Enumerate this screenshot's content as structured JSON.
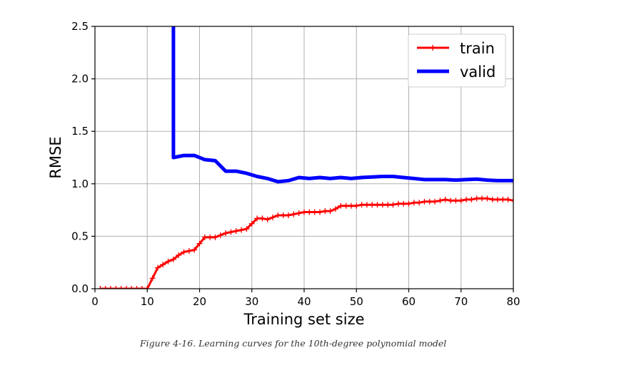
{
  "caption": "Figure 4-16. Learning curves for the 10th-degree polynomial model",
  "colors": {
    "train": "#ff0000",
    "valid": "#0000ff",
    "grid": "#b0b0b0"
  },
  "chart_data": {
    "type": "line",
    "xlabel": "Training set size",
    "ylabel": "RMSE",
    "xlim": [
      0,
      80
    ],
    "ylim": [
      0,
      2.5
    ],
    "xticks": [
      0,
      10,
      20,
      30,
      40,
      50,
      60,
      70,
      80
    ],
    "yticks": [
      0.0,
      0.5,
      1.0,
      1.5,
      2.0,
      2.5
    ],
    "xtick_labels": [
      "0",
      "10",
      "20",
      "30",
      "40",
      "50",
      "60",
      "70",
      "80"
    ],
    "ytick_labels": [
      "0.0",
      "0.5",
      "1.0",
      "1.5",
      "2.0",
      "2.5"
    ],
    "grid": true,
    "legend": "top-right",
    "series": [
      {
        "name": "train",
        "color": "#ff0000",
        "marker": "plus",
        "x": [
          1,
          2,
          3,
          4,
          5,
          6,
          7,
          8,
          9,
          10,
          11,
          12,
          13,
          14,
          15,
          16,
          17,
          18,
          19,
          20,
          21,
          22,
          23,
          24,
          25,
          26,
          27,
          28,
          29,
          30,
          31,
          32,
          33,
          34,
          35,
          36,
          37,
          38,
          39,
          40,
          41,
          42,
          43,
          44,
          45,
          46,
          47,
          48,
          49,
          50,
          51,
          52,
          53,
          54,
          55,
          56,
          57,
          58,
          59,
          60,
          61,
          62,
          63,
          64,
          65,
          66,
          67,
          68,
          69,
          70,
          71,
          72,
          73,
          74,
          75,
          76,
          77,
          78,
          79,
          80
        ],
        "y": [
          0,
          0,
          0,
          0,
          0,
          0,
          0,
          0,
          0,
          0,
          0.1,
          0.2,
          0.23,
          0.26,
          0.28,
          0.32,
          0.35,
          0.36,
          0.37,
          0.43,
          0.49,
          0.49,
          0.49,
          0.51,
          0.53,
          0.54,
          0.55,
          0.56,
          0.57,
          0.62,
          0.67,
          0.67,
          0.66,
          0.68,
          0.7,
          0.7,
          0.7,
          0.71,
          0.72,
          0.73,
          0.73,
          0.73,
          0.73,
          0.74,
          0.74,
          0.76,
          0.79,
          0.79,
          0.79,
          0.79,
          0.8,
          0.8,
          0.8,
          0.8,
          0.8,
          0.8,
          0.8,
          0.81,
          0.81,
          0.81,
          0.82,
          0.82,
          0.83,
          0.83,
          0.83,
          0.84,
          0.85,
          0.84,
          0.84,
          0.84,
          0.85,
          0.85,
          0.86,
          0.86,
          0.86,
          0.85,
          0.85,
          0.85,
          0.85,
          0.84
        ]
      },
      {
        "name": "valid",
        "color": "#0000ff",
        "x": [
          15,
          15,
          17,
          19,
          21,
          23,
          25,
          27,
          29,
          31,
          33,
          35,
          37,
          39,
          41,
          43,
          45,
          47,
          49,
          51,
          53,
          55,
          57,
          59,
          61,
          63,
          65,
          67,
          69,
          71,
          73,
          75,
          77,
          80
        ],
        "y": [
          3.0,
          1.25,
          1.27,
          1.27,
          1.23,
          1.22,
          1.12,
          1.12,
          1.1,
          1.07,
          1.05,
          1.02,
          1.03,
          1.06,
          1.05,
          1.06,
          1.05,
          1.06,
          1.05,
          1.06,
          1.065,
          1.07,
          1.07,
          1.06,
          1.05,
          1.04,
          1.04,
          1.04,
          1.035,
          1.04,
          1.045,
          1.035,
          1.03,
          1.03
        ]
      }
    ]
  }
}
